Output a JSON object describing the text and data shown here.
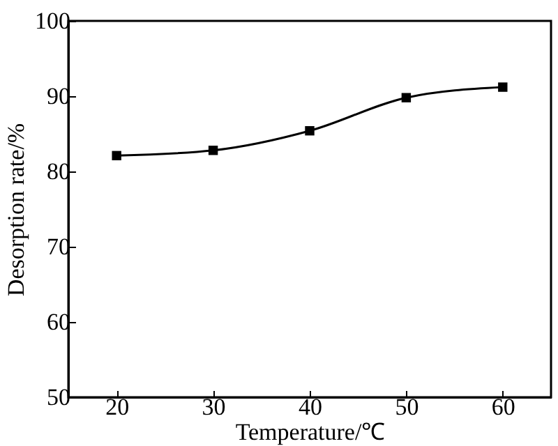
{
  "chart_data": {
    "type": "line",
    "xlabel": "Temperature/℃",
    "ylabel": "Desorption rate/%",
    "x": [
      20,
      30,
      40,
      50,
      60
    ],
    "series": [
      {
        "color": "#000000",
        "values": [
          82.1,
          82.8,
          85.4,
          89.8,
          91.2
        ]
      }
    ],
    "xlim": [
      15,
      65
    ],
    "xticks": [
      20,
      30,
      40,
      50,
      60
    ],
    "ylim": [
      50,
      100
    ],
    "yticks": [
      50,
      60,
      70,
      80,
      90,
      100
    ],
    "marker": "square",
    "line_style": "solid",
    "grid": false,
    "legend": false
  }
}
